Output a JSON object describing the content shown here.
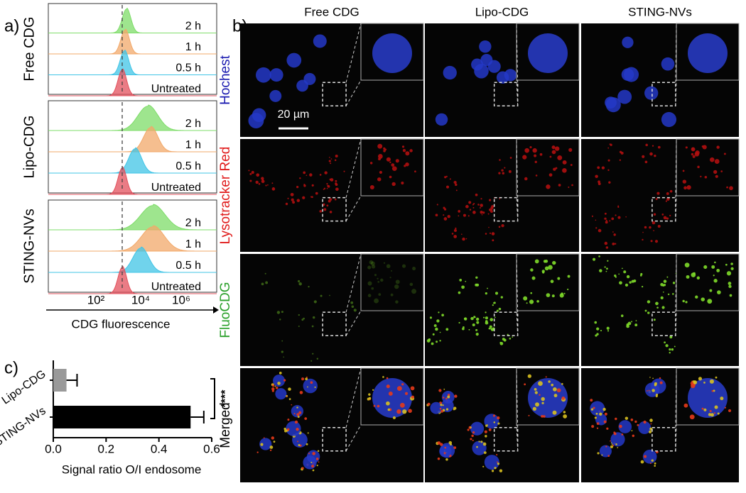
{
  "panel_a": {
    "label": "a)",
    "groups": [
      {
        "name": "Free CDG",
        "rows": [
          "2 h",
          "1 h",
          "0.5 h",
          "Untreated"
        ]
      },
      {
        "name": "Lipo-CDG",
        "rows": [
          "2 h",
          "1 h",
          "0.5 h",
          "Untreated"
        ]
      },
      {
        "name": "STING-NVs",
        "rows": [
          "2 h",
          "1 h",
          "0.5 h",
          "Untreated"
        ]
      }
    ],
    "x_tick_labels": [
      "10²",
      "10⁴",
      "10⁶"
    ],
    "xlabel": "CDG fluorescence"
  },
  "panel_b": {
    "label": "b)",
    "columns": [
      "Free CDG",
      "Lipo-CDG",
      "STING-NVs"
    ],
    "rows": [
      "Hochest",
      "Lysotracker Red",
      "FluoCDG",
      "Merged"
    ],
    "scale_bar": "20 µm"
  },
  "panel_c_label": "c)",
  "chart_data": {
    "type": "bar",
    "orientation": "horizontal",
    "categories": [
      "Lipo-CDG",
      "STING-NVs"
    ],
    "values": [
      0.05,
      0.52
    ],
    "errors": [
      0.04,
      0.05
    ],
    "colors": [
      "#999999",
      "#000000"
    ],
    "xlim": [
      0,
      0.6
    ],
    "xticks": [
      {
        "value": 0,
        "label": "0.0"
      },
      0.2,
      0.4,
      0.6
    ],
    "xlabel": "Signal ratio O/I endosome",
    "significance": "****"
  }
}
